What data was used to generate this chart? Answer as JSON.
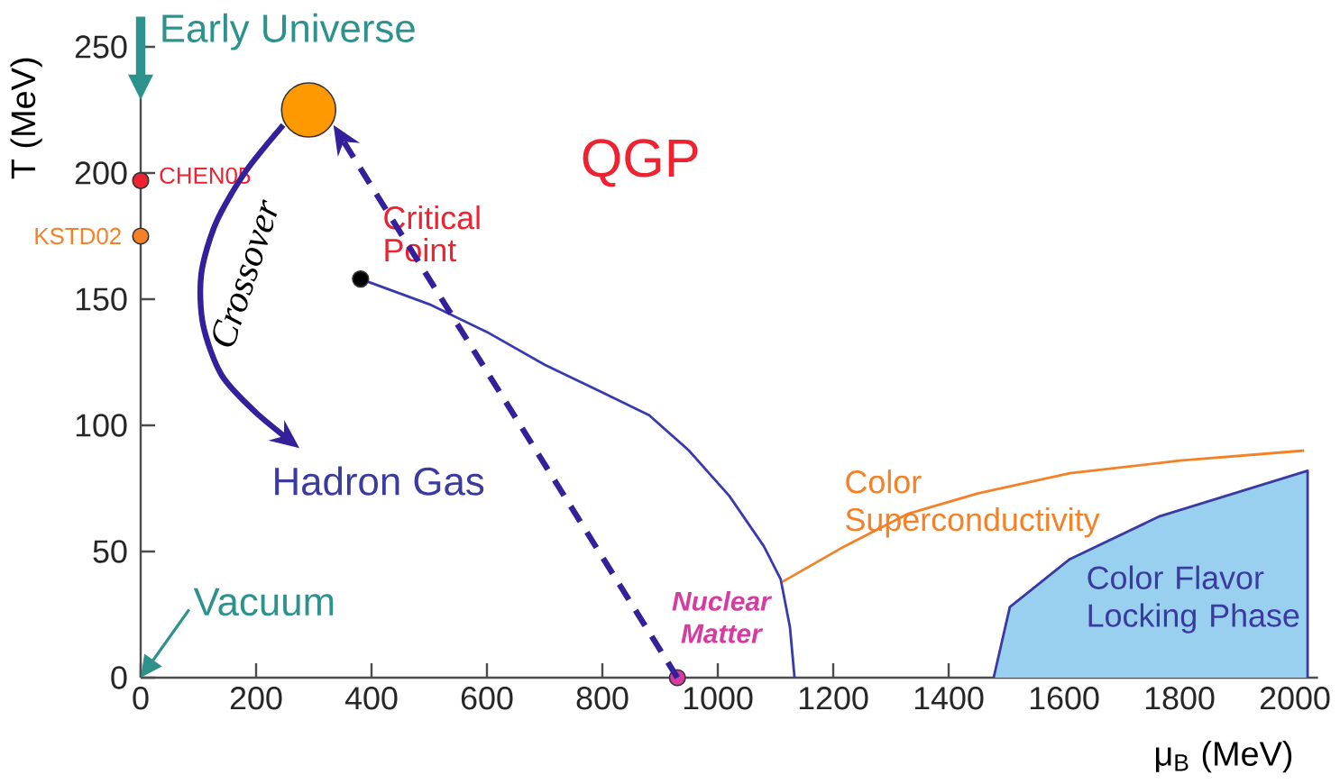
{
  "chart_data": {
    "type": "line",
    "xlabel": "μ$_{B}$ (MeV)",
    "ylabel": "T (MeV)",
    "xlim": [
      0,
      2040
    ],
    "ylim": [
      0,
      255
    ],
    "xticks": [
      0,
      200,
      400,
      600,
      800,
      1000,
      1200,
      1400,
      1600,
      1800,
      2000
    ],
    "yticks": [
      0,
      50,
      100,
      150,
      200,
      250
    ],
    "series": [
      {
        "color": "#3a3ab0",
        "x": [
          381,
          500,
          600,
          700,
          800,
          881,
          950,
          1020,
          1080,
          1109,
          1125,
          1133
        ],
        "values": [
          158,
          148,
          137,
          124,
          113,
          104,
          90,
          72,
          52,
          39,
          20,
          0
        ]
      },
      {
        "name": "Color Superconductivity",
        "color": "#f58025",
        "x": [
          1112,
          1219,
          1330,
          1450,
          1610,
          1800,
          2016
        ],
        "values": [
          38,
          52,
          65,
          73,
          81,
          86,
          90
        ]
      },
      {
        "name": "Color Flavor Locking Phase",
        "type": "area",
        "color": "#99d0f0",
        "x": [
          1478,
          1506,
          1610,
          1766,
          2022
        ],
        "values": [
          0,
          28,
          47,
          64,
          82
        ]
      },
      {
        "name": "CHEN05",
        "type": "scatter",
        "marker": "circle",
        "color": "#ee2230",
        "x": [
          0
        ],
        "values": [
          197
        ]
      },
      {
        "name": "KSTD02",
        "type": "scatter",
        "marker": "circle",
        "color": "#f58025",
        "x": [
          0
        ],
        "values": [
          175
        ]
      },
      {
        "type": "scatter",
        "marker": "circle",
        "color": "#000000",
        "x": [
          381
        ],
        "values": [
          158
        ]
      },
      {
        "name": "Nuclear Matter",
        "type": "scatter",
        "marker": "circle",
        "color": "#d63ba0",
        "x": [
          930
        ],
        "values": [
          0
        ]
      },
      {
        "type": "scatter",
        "marker": "circle",
        "color": "#ff9900",
        "x": [
          291
        ],
        "values": [
          225
        ]
      }
    ],
    "annotations": [
      "QGP",
      "Hadron Gas",
      "Early Universe",
      "Vacuum",
      "Crossover",
      "Critical Point"
    ]
  }
}
